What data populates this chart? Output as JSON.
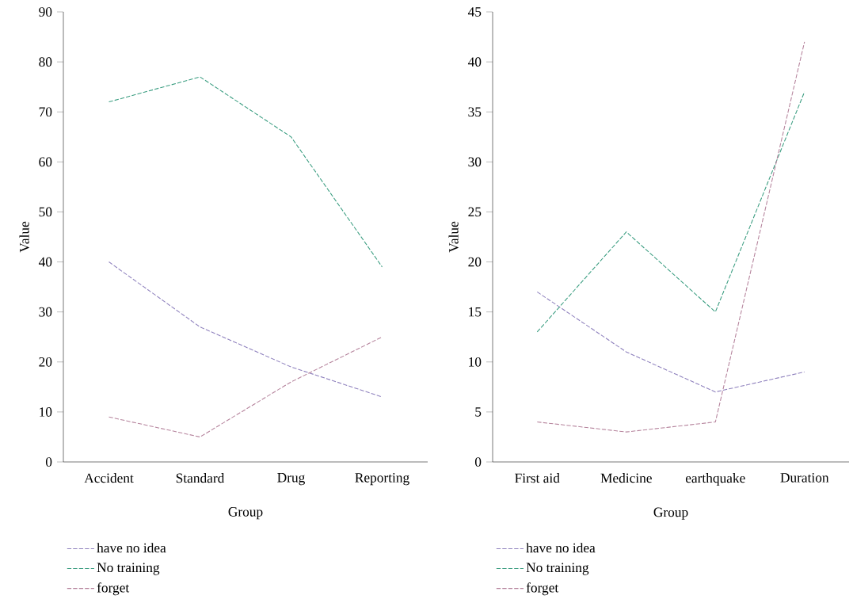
{
  "chart_data": [
    {
      "type": "line",
      "xlabel": "Group",
      "ylabel": "Value",
      "categories": [
        "Accident",
        "Standard",
        "Drug",
        "Reporting"
      ],
      "ylim": [
        0,
        90
      ],
      "yticks": [
        0,
        10,
        20,
        30,
        40,
        50,
        60,
        70,
        80,
        90
      ],
      "line_style": "dashed",
      "legend": "bottom",
      "grid": false,
      "series": [
        {
          "name": "have no idea",
          "color": "#8e80bd",
          "values": [
            40,
            27,
            19,
            13
          ]
        },
        {
          "name": "No training",
          "color": "#3a9d80",
          "values": [
            72,
            77,
            65,
            39
          ]
        },
        {
          "name": "forget",
          "color": "#b5839c",
          "values": [
            9,
            5,
            16,
            25
          ]
        }
      ]
    },
    {
      "type": "line",
      "xlabel": "Group",
      "ylabel": "Value",
      "categories": [
        "First aid",
        "Medicine",
        "earthquake",
        "Duration"
      ],
      "ylim": [
        0,
        45
      ],
      "yticks": [
        0,
        5,
        10,
        15,
        20,
        25,
        30,
        35,
        40,
        45
      ],
      "line_style": "dashed",
      "legend": "bottom",
      "grid": false,
      "series": [
        {
          "name": "have no idea",
          "color": "#8e80bd",
          "values": [
            17,
            11,
            7,
            9
          ]
        },
        {
          "name": "No training",
          "color": "#3a9d80",
          "values": [
            13,
            23,
            15,
            37
          ]
        },
        {
          "name": "forget",
          "color": "#b5839c",
          "values": [
            4,
            3,
            4,
            42
          ]
        }
      ]
    }
  ]
}
